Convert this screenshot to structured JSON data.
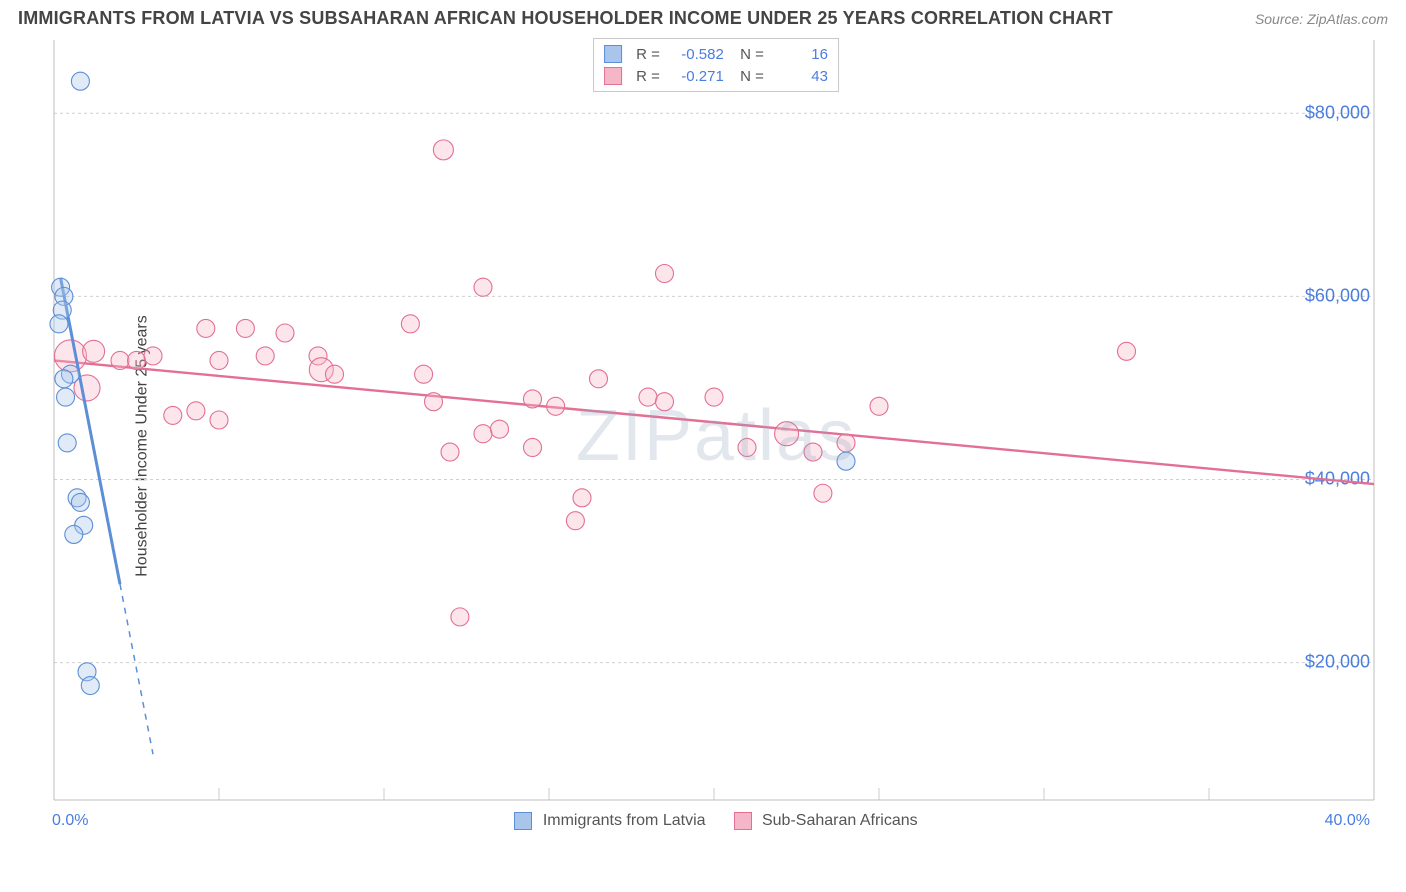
{
  "header": {
    "title": "IMMIGRANTS FROM LATVIA VS SUBSAHARAN AFRICAN HOUSEHOLDER INCOME UNDER 25 YEARS CORRELATION CHART",
    "source": "Source: ZipAtlas.com"
  },
  "watermark": "ZIPatlas",
  "chart": {
    "type": "scatter",
    "ylabel": "Householder Income Under 25 years",
    "xlim": [
      0,
      40
    ],
    "ylim": [
      5000,
      88000
    ],
    "ytick_values": [
      20000,
      40000,
      60000,
      80000
    ],
    "ytick_labels": [
      "$20,000",
      "$40,000",
      "$60,000",
      "$80,000"
    ],
    "xtick_positions": [
      0,
      5,
      10,
      15,
      20,
      25,
      30,
      35,
      40
    ],
    "x_axis_label_min": "0.0%",
    "x_axis_label_max": "40.0%",
    "background_color": "#ffffff",
    "grid_color": "#d0d0d0",
    "series": [
      {
        "name": "Immigrants from Latvia",
        "color_fill": "#a8c5ec",
        "color_stroke": "#5c8fd6",
        "marker_radius": 9,
        "R": "-0.582",
        "N": "16",
        "regression": {
          "x1": 0.2,
          "y1": 62000,
          "x2": 3.0,
          "y2": 10000,
          "solid_until_x": 2.0
        },
        "points": [
          {
            "x": 0.8,
            "y": 83500,
            "r": 9
          },
          {
            "x": 0.2,
            "y": 61000,
            "r": 9
          },
          {
            "x": 0.3,
            "y": 60000,
            "r": 9
          },
          {
            "x": 0.25,
            "y": 58500,
            "r": 9
          },
          {
            "x": 0.15,
            "y": 57000,
            "r": 9
          },
          {
            "x": 0.5,
            "y": 51500,
            "r": 9
          },
          {
            "x": 0.3,
            "y": 51000,
            "r": 9
          },
          {
            "x": 0.35,
            "y": 49000,
            "r": 9
          },
          {
            "x": 0.4,
            "y": 44000,
            "r": 9
          },
          {
            "x": 0.7,
            "y": 38000,
            "r": 9
          },
          {
            "x": 0.8,
            "y": 37500,
            "r": 9
          },
          {
            "x": 0.9,
            "y": 35000,
            "r": 9
          },
          {
            "x": 0.6,
            "y": 34000,
            "r": 9
          },
          {
            "x": 1.0,
            "y": 19000,
            "r": 9
          },
          {
            "x": 1.1,
            "y": 17500,
            "r": 9
          },
          {
            "x": 24.0,
            "y": 42000,
            "r": 9
          }
        ]
      },
      {
        "name": "Sub-Saharan Africans",
        "color_fill": "#f5b7c8",
        "color_stroke": "#e36f94",
        "marker_radius": 9,
        "R": "-0.271",
        "N": "43",
        "regression": {
          "x1": 0,
          "y1": 53000,
          "x2": 40,
          "y2": 39500,
          "solid_until_x": 40
        },
        "points": [
          {
            "x": 11.8,
            "y": 76000,
            "r": 10
          },
          {
            "x": 13.0,
            "y": 61000,
            "r": 9
          },
          {
            "x": 18.5,
            "y": 62500,
            "r": 9
          },
          {
            "x": 0.5,
            "y": 53500,
            "r": 16
          },
          {
            "x": 1.2,
            "y": 54000,
            "r": 11
          },
          {
            "x": 1.0,
            "y": 50000,
            "r": 13
          },
          {
            "x": 2.0,
            "y": 53000,
            "r": 9
          },
          {
            "x": 2.5,
            "y": 53000,
            "r": 9
          },
          {
            "x": 3.0,
            "y": 53500,
            "r": 9
          },
          {
            "x": 3.6,
            "y": 47000,
            "r": 9
          },
          {
            "x": 4.3,
            "y": 47500,
            "r": 9
          },
          {
            "x": 4.6,
            "y": 56500,
            "r": 9
          },
          {
            "x": 5.0,
            "y": 53000,
            "r": 9
          },
          {
            "x": 5.0,
            "y": 46500,
            "r": 9
          },
          {
            "x": 5.8,
            "y": 56500,
            "r": 9
          },
          {
            "x": 6.4,
            "y": 53500,
            "r": 9
          },
          {
            "x": 7.0,
            "y": 56000,
            "r": 9
          },
          {
            "x": 8.0,
            "y": 53500,
            "r": 9
          },
          {
            "x": 8.1,
            "y": 52000,
            "r": 12
          },
          {
            "x": 8.5,
            "y": 51500,
            "r": 9
          },
          {
            "x": 10.8,
            "y": 57000,
            "r": 9
          },
          {
            "x": 11.2,
            "y": 51500,
            "r": 9
          },
          {
            "x": 11.5,
            "y": 48500,
            "r": 9
          },
          {
            "x": 12.0,
            "y": 43000,
            "r": 9
          },
          {
            "x": 12.3,
            "y": 25000,
            "r": 9
          },
          {
            "x": 13.0,
            "y": 45000,
            "r": 9
          },
          {
            "x": 13.5,
            "y": 45500,
            "r": 9
          },
          {
            "x": 14.5,
            "y": 48800,
            "r": 9
          },
          {
            "x": 14.5,
            "y": 43500,
            "r": 9
          },
          {
            "x": 15.2,
            "y": 48000,
            "r": 9
          },
          {
            "x": 15.8,
            "y": 35500,
            "r": 9
          },
          {
            "x": 16.0,
            "y": 38000,
            "r": 9
          },
          {
            "x": 16.5,
            "y": 51000,
            "r": 9
          },
          {
            "x": 18.0,
            "y": 49000,
            "r": 9
          },
          {
            "x": 18.5,
            "y": 48500,
            "r": 9
          },
          {
            "x": 20.0,
            "y": 49000,
            "r": 9
          },
          {
            "x": 21.0,
            "y": 43500,
            "r": 9
          },
          {
            "x": 22.2,
            "y": 45000,
            "r": 12
          },
          {
            "x": 23.0,
            "y": 43000,
            "r": 9
          },
          {
            "x": 23.3,
            "y": 38500,
            "r": 9
          },
          {
            "x": 24.0,
            "y": 44000,
            "r": 9
          },
          {
            "x": 25.0,
            "y": 48000,
            "r": 9
          },
          {
            "x": 32.5,
            "y": 54000,
            "r": 9
          }
        ]
      }
    ],
    "bottom_legend": {
      "series1_label": "Immigrants from Latvia",
      "series2_label": "Sub-Saharan Africans"
    }
  }
}
